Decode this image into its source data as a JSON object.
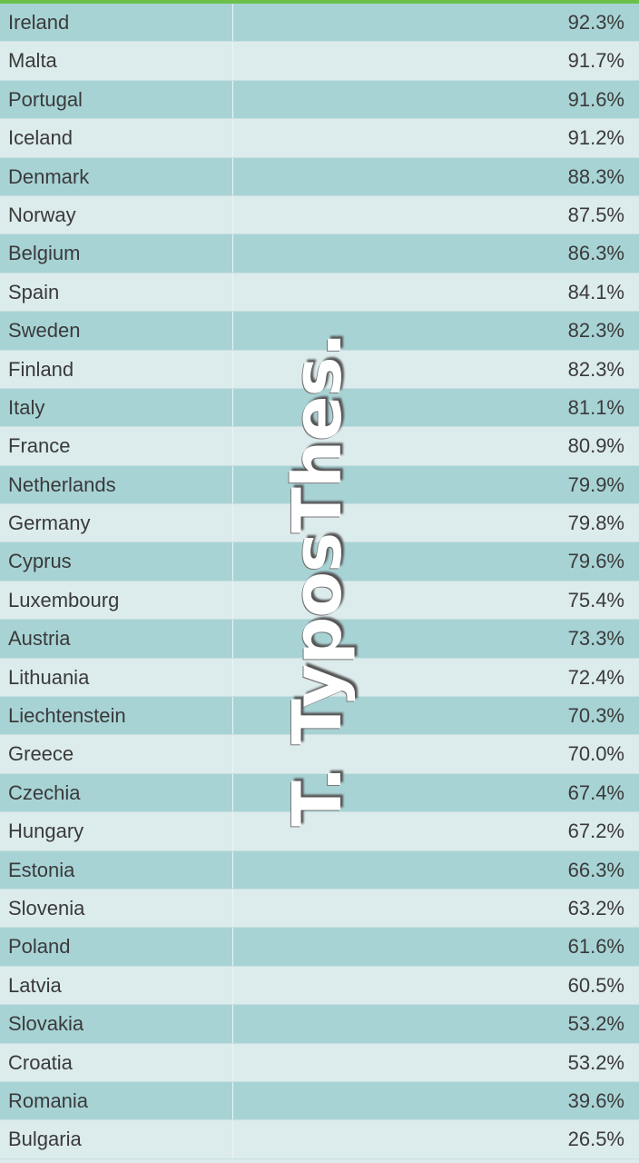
{
  "table": {
    "rows": [
      [
        "Ireland",
        "92.3%"
      ],
      [
        "Malta",
        "91.7%"
      ],
      [
        "Portugal",
        "91.6%"
      ],
      [
        "Iceland",
        "91.2%"
      ],
      [
        "Denmark",
        "88.3%"
      ],
      [
        "Norway",
        "87.5%"
      ],
      [
        "Belgium",
        "86.3%"
      ],
      [
        "Spain",
        "84.1%"
      ],
      [
        "Sweden",
        "82.3%"
      ],
      [
        "Finland",
        "82.3%"
      ],
      [
        "Italy",
        "81.1%"
      ],
      [
        "France",
        "80.9%"
      ],
      [
        "Netherlands",
        "79.9%"
      ],
      [
        "Germany",
        "79.8%"
      ],
      [
        "Cyprus",
        "79.6%"
      ],
      [
        "Luxembourg",
        "75.4%"
      ],
      [
        "Austria",
        "73.3%"
      ],
      [
        "Lithuania",
        "72.4%"
      ],
      [
        "Liechtenstein",
        "70.3%"
      ],
      [
        "Greece",
        "70.0%"
      ],
      [
        "Czechia",
        "67.4%"
      ],
      [
        "Hungary",
        "67.2%"
      ],
      [
        "Estonia",
        "66.3%"
      ],
      [
        "Slovenia",
        "63.2%"
      ],
      [
        "Poland",
        "61.6%"
      ],
      [
        "Latvia",
        "60.5%"
      ],
      [
        "Slovakia",
        "53.2%"
      ],
      [
        "Croatia",
        "53.2%"
      ],
      [
        "Romania",
        "39.6%"
      ],
      [
        "Bulgaria",
        "26.5%"
      ]
    ]
  },
  "watermark": "T. TyposThes."
}
